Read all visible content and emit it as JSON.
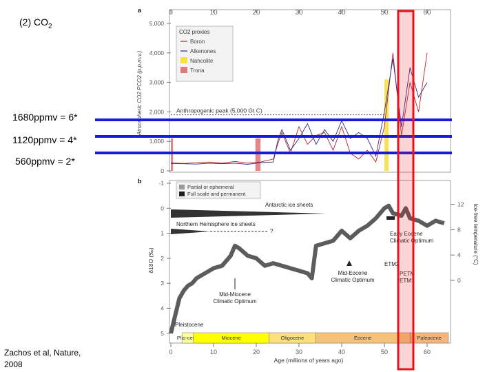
{
  "slide": {
    "title_prefix": "(2) CO",
    "title_sub": "2",
    "citation_line1": "Zachos et al, Nature,",
    "citation_line2": "2008",
    "sensitivity_labels": [
      "1680ppmv = 6*",
      "1120ppmv = 4*",
      "560ppmv = 2*"
    ],
    "highlight_color": "#e8141c",
    "line_color": "#1a1adc"
  },
  "chart_data": [
    {
      "panel": "a",
      "type": "line",
      "ylabel": "Atmospheric CO2 PCO2 (p.p.m.v.)",
      "ylim": [
        0,
        5000
      ],
      "xlim": [
        0,
        65
      ],
      "x_ticks": [
        0,
        10,
        20,
        30,
        40,
        50,
        60
      ],
      "y_ticks": [
        0,
        1000,
        2000,
        3000,
        4000,
        5000
      ],
      "y_tick_labels": [
        "0",
        "1,000",
        "2,000",
        "3,000",
        "4,000",
        "5,000"
      ],
      "legend_title": "CO2 proxies",
      "legend": [
        {
          "label": "Boron",
          "color": "#c0202a"
        },
        {
          "label": "Alkenones",
          "color": "#2a2a8c"
        },
        {
          "label": "Nahcolite",
          "color": "#f4e04a"
        },
        {
          "label": "Trona",
          "color": "#e07b7b"
        }
      ],
      "annotation": "Anthropogenic peak (5,000 Gt C)",
      "annotation_value": 1900,
      "bars": [
        {
          "label": "Trona",
          "x0": 0,
          "x1": 0.5,
          "y1": 1100
        },
        {
          "label": "Trona",
          "x0": 19.8,
          "x1": 21.0,
          "y1": 1100
        },
        {
          "label": "Nahcolite",
          "x0": 50,
          "x1": 51,
          "y1": 3100
        }
      ],
      "series": [
        {
          "name": "Boron",
          "x": [
            0,
            3,
            6,
            9,
            12,
            15,
            18,
            21,
            24,
            25,
            26,
            28,
            30,
            32,
            34,
            36,
            38,
            40,
            42,
            44,
            46,
            48,
            50,
            52,
            54,
            56,
            58,
            60
          ],
          "y": [
            270,
            250,
            280,
            300,
            260,
            320,
            260,
            300,
            400,
            900,
            1300,
            600,
            1500,
            900,
            1200,
            1300,
            700,
            1500,
            600,
            400,
            700,
            300,
            1500,
            4000,
            1200,
            3000,
            2000,
            4000
          ]
        },
        {
          "name": "Alkenones",
          "x": [
            0,
            3,
            6,
            9,
            12,
            15,
            18,
            21,
            24,
            25,
            26,
            28,
            30,
            32,
            34,
            36,
            38,
            40,
            42,
            44,
            46,
            48,
            50,
            52,
            54,
            56,
            58,
            60
          ],
          "y": [
            250,
            240,
            230,
            260,
            240,
            260,
            220,
            280,
            300,
            1000,
            1400,
            700,
            1100,
            1600,
            900,
            1400,
            1000,
            1700,
            1100,
            1300,
            1100,
            500,
            2000,
            3800,
            1500,
            3500,
            2500,
            3000
          ]
        }
      ]
    },
    {
      "panel": "b",
      "type": "scatter",
      "ylabel": "δ18O (‰)",
      "y2label": "Ice-free temperature (°C)",
      "xlabel": "Age (millions of years ago)",
      "xlim": [
        0,
        65
      ],
      "ylim": [
        -1,
        5
      ],
      "x_ticks": [
        0,
        10,
        20,
        30,
        40,
        50,
        60
      ],
      "y_ticks": [
        -1,
        0,
        1,
        2,
        3,
        4,
        5
      ],
      "y2_ticks": [
        0,
        4,
        8,
        12
      ],
      "legend": [
        "Partial or ephemeral",
        "Full scale and permanent"
      ],
      "ice_sheets": [
        "Antarctic ice sheets",
        "Northern Hemisphere ice sheets"
      ],
      "annotations": [
        "Early Eocene Climatic Optimum",
        "Mid-Eocene Climatic Optimum",
        "Mid-Miocene Climatic Optimum",
        "ETM2",
        "PETM",
        "ETM1",
        "Pleistocene",
        "?"
      ],
      "epochs": [
        {
          "name": "Plio-cene",
          "start": 2.6,
          "end": 5.3,
          "color": "#ffff99"
        },
        {
          "name": "Miocene",
          "start": 5.3,
          "end": 23,
          "color": "#ffff00"
        },
        {
          "name": "Oligocene",
          "start": 23,
          "end": 33.9,
          "color": "#fde07a"
        },
        {
          "name": "Eocene",
          "start": 33.9,
          "end": 56,
          "color": "#f5c27a"
        },
        {
          "name": "Paleocene",
          "start": 56,
          "end": 65,
          "color": "#f3b57a"
        }
      ],
      "series": [
        {
          "x": [
            0,
            1,
            2,
            3,
            4,
            5,
            6,
            8,
            10,
            12,
            14,
            15,
            16,
            18,
            20,
            22,
            24,
            26,
            28,
            30,
            32,
            33,
            34,
            36,
            38,
            40,
            42,
            44,
            46,
            48,
            50,
            51,
            52,
            54,
            55,
            56,
            58,
            60,
            62,
            64
          ],
          "y": [
            5.0,
            4.3,
            3.6,
            3.3,
            3.1,
            3.0,
            2.8,
            2.6,
            2.4,
            2.3,
            1.9,
            1.5,
            1.6,
            1.9,
            2.0,
            2.3,
            2.2,
            2.3,
            2.4,
            2.5,
            2.6,
            2.8,
            1.5,
            1.4,
            1.3,
            0.9,
            1.2,
            0.9,
            0.7,
            0.4,
            0.0,
            -0.1,
            0.2,
            0.3,
            0.0,
            0.4,
            0.5,
            0.7,
            0.5,
            0.6
          ]
        }
      ]
    }
  ]
}
